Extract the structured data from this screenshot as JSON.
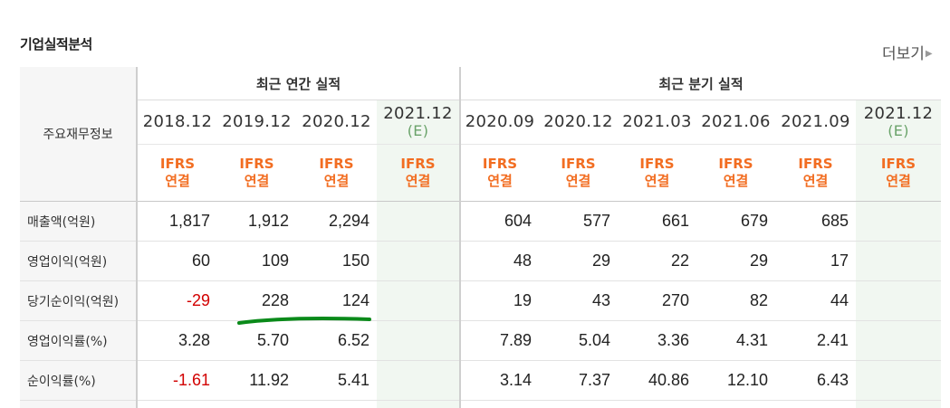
{
  "header": {
    "title": "기업실적분석",
    "more_label": "더보기"
  },
  "table": {
    "corner_label": "주요재무정보",
    "annual_group": "최근 연간 실적",
    "quarter_group": "최근 분기 실적",
    "standard_line1": "IFRS",
    "standard_line2": "연결",
    "estimate_tag": "(E)",
    "annual_periods": [
      "2018.12",
      "2019.12",
      "2020.12",
      "2021.12"
    ],
    "quarter_periods": [
      "2020.09",
      "2020.12",
      "2021.03",
      "2021.06",
      "2021.09",
      "2021.12"
    ],
    "rows": [
      {
        "label": "매출액(억원)",
        "values": [
          "1,817",
          "1,912",
          "2,294",
          "",
          "604",
          "577",
          "661",
          "679",
          "685",
          ""
        ]
      },
      {
        "label": "영업이익(억원)",
        "values": [
          "60",
          "109",
          "150",
          "",
          "48",
          "29",
          "22",
          "29",
          "17",
          ""
        ]
      },
      {
        "label": "당기순이익(억원)",
        "values": [
          "-29",
          "228",
          "124",
          "",
          "19",
          "43",
          "270",
          "82",
          "44",
          ""
        ]
      },
      {
        "label": "영업이익률(%)",
        "values": [
          "3.28",
          "5.70",
          "6.52",
          "",
          "7.89",
          "5.04",
          "3.36",
          "4.31",
          "2.41",
          ""
        ]
      },
      {
        "label": "순이익률(%)",
        "values": [
          "-1.61",
          "11.92",
          "5.41",
          "",
          "3.14",
          "7.37",
          "40.86",
          "12.10",
          "6.43",
          ""
        ]
      }
    ]
  },
  "colors": {
    "accent_standard": "#f26d21",
    "negative": "#d20000",
    "estimate_bg": "#f1f7f1",
    "annotation": "#0a8a1a"
  }
}
